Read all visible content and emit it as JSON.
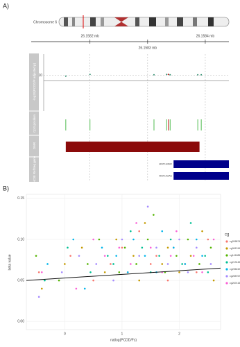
{
  "panel_a": {
    "label": "A)",
    "chromosome": "Chromosome 6",
    "xlim": [
      26.158098,
      26.158441
    ],
    "xticks": [
      {
        "value": 26.1582,
        "label": "26.1582 mb"
      },
      {
        "value": 26.1583,
        "label": "26.1583 mb"
      },
      {
        "value": 26.1584,
        "label": "26.1584 mb"
      }
    ],
    "tracks": {
      "association": "-log10(PCDD/F adjusted p)",
      "cpg": "CpG position",
      "dmr": "DMR",
      "genes": "NCBI RefSeq gene"
    },
    "association_ylim": [
      0,
      16
    ],
    "association_yticks": [
      10
    ],
    "threshold": 8.5,
    "cpgs": {
      "x": [
        26.158158,
        26.1582,
        26.158311,
        26.158333,
        26.158336,
        26.158339,
        26.158387,
        26.158393
      ],
      "values": [
        9.8,
        10.3,
        10.2,
        10.3,
        10.3,
        10.2,
        10.2,
        10.2
      ],
      "colors": [
        "#3cb43c",
        "#3cb43c",
        "#3cb43c",
        "#3cb43c",
        "#c00000",
        "#3cb43c",
        "#3cb43c",
        "#3cb43c"
      ]
    },
    "dmr": {
      "start": 26.158158,
      "end": 26.15839,
      "color": "#8b0a0a"
    },
    "genes": [
      {
        "name": "HIST1H2BC",
        "start": 26.158345,
        "end": 26.158441,
        "color": "#00008b"
      },
      {
        "name": "HIST1H2AC",
        "start": 26.158345,
        "end": 26.158441,
        "color": "#00008b"
      }
    ]
  },
  "chart_data": {
    "type": "scatter",
    "label": "B)",
    "x_label": "natlog(PCDD/Fs)",
    "y_label": "beta value",
    "legend_title": "cg",
    "xlim": [
      -0.67,
      2.72
    ],
    "xticks": [
      0,
      1,
      2
    ],
    "ylim": [
      -0.01,
      0.155
    ],
    "yticks": [
      {
        "value": 0,
        "label": "0.00"
      },
      {
        "value": 0.05,
        "label": "0.05"
      },
      {
        "value": 0.1,
        "label": "0.10"
      },
      {
        "value": 0.15,
        "label": "0.15"
      }
    ],
    "trend_line": {
      "x": [
        -0.67,
        2.72
      ],
      "y": [
        0.05,
        0.065
      ]
    },
    "series": [
      {
        "name": "cg20687459",
        "color": "#F8766D",
        "x": [
          -0.45,
          0.1,
          0.5,
          0.8,
          1.0,
          1.1,
          1.3,
          1.5,
          1.6,
          1.8,
          1.9,
          2.1,
          2.3,
          2.5
        ],
        "values": [
          0.06,
          0.08,
          0.05,
          0.07,
          0.09,
          0.06,
          0.11,
          0.07,
          0.08,
          0.05,
          0.09,
          0.07,
          0.06,
          0.1
        ]
      },
      {
        "name": "cg06131645",
        "color": "#C49A00",
        "x": [
          -0.4,
          0.0,
          0.3,
          0.7,
          0.9,
          1.2,
          1.3,
          1.4,
          1.7,
          1.8,
          2.0,
          2.2,
          2.4,
          2.6
        ],
        "values": [
          0.04,
          0.07,
          0.09,
          0.06,
          0.1,
          0.08,
          0.05,
          0.12,
          0.07,
          0.09,
          0.06,
          0.08,
          0.11,
          0.05
        ]
      },
      {
        "name": "cg14168534",
        "color": "#53B400",
        "x": [
          -0.5,
          -0.1,
          0.4,
          0.6,
          0.95,
          1.05,
          1.25,
          1.45,
          1.55,
          1.75,
          1.95,
          2.15,
          2.35,
          2.55
        ],
        "values": [
          0.08,
          0.05,
          0.07,
          0.1,
          0.06,
          0.09,
          0.07,
          0.1,
          0.13,
          0.06,
          0.08,
          0.1,
          0.07,
          0.09
        ]
      },
      {
        "name": "cg21314579",
        "color": "#00C094",
        "x": [
          -0.35,
          0.05,
          0.45,
          0.75,
          0.85,
          1.15,
          1.35,
          1.5,
          1.65,
          1.85,
          2.05,
          2.2,
          2.45,
          2.5
        ],
        "values": [
          0.05,
          0.09,
          0.06,
          0.08,
          0.07,
          0.11,
          0.09,
          0.06,
          0.08,
          0.1,
          0.07,
          0.12,
          0.08,
          0.06
        ]
      },
      {
        "name": "cg23624284",
        "color": "#00B6EB",
        "x": [
          -0.3,
          0.15,
          0.35,
          0.65,
          0.9,
          1.1,
          1.2,
          1.4,
          1.6,
          1.7,
          1.9,
          2.1,
          2.3,
          2.4
        ],
        "values": [
          0.07,
          0.1,
          0.04,
          0.09,
          0.08,
          0.06,
          0.1,
          0.08,
          0.06,
          0.11,
          0.09,
          0.07,
          0.1,
          0.08
        ]
      },
      {
        "name": "cg26576763",
        "color": "#A58AFF",
        "x": [
          -0.45,
          -0.05,
          0.25,
          0.55,
          0.85,
          1.0,
          1.3,
          1.45,
          1.6,
          1.8,
          2.0,
          2.15,
          2.3,
          2.55
        ],
        "values": [
          0.03,
          0.06,
          0.08,
          0.07,
          0.05,
          0.1,
          0.08,
          0.14,
          0.09,
          0.07,
          0.1,
          0.06,
          0.09,
          0.07
        ]
      },
      {
        "name": "cg26741595",
        "color": "#FB61D7",
        "x": [
          -0.4,
          0.2,
          0.5,
          0.7,
          0.95,
          1.15,
          1.25,
          1.5,
          1.7,
          1.85,
          1.95,
          2.25,
          2.4,
          2.6
        ],
        "values": [
          0.06,
          0.04,
          0.1,
          0.08,
          0.09,
          0.07,
          0.12,
          0.09,
          0.06,
          0.08,
          0.11,
          0.08,
          0.06,
          0.1
        ]
      }
    ]
  }
}
